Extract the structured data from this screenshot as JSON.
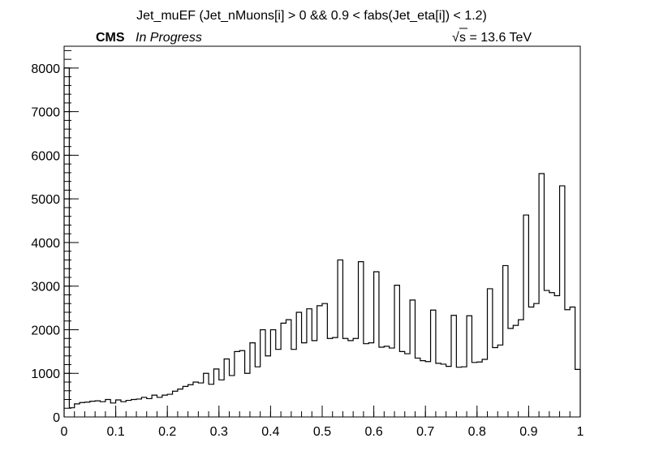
{
  "header": {
    "title": "Jet_muEF (Jet_nMuons[i] > 0  && 0.9 < fabs(Jet_eta[i]) < 1.2)",
    "experiment": "CMS",
    "status": "In Progress",
    "energy_label": "s = 13.6 TeV",
    "sqrt_symbol": "√"
  },
  "chart_data": {
    "type": "histogram",
    "title": "Jet_muEF (Jet_nMuons[i] > 0  && 0.9 < fabs(Jet_eta[i]) < 1.2)",
    "xlabel": "",
    "ylabel": "",
    "xlim": [
      0,
      1
    ],
    "ylim": [
      0,
      8500
    ],
    "grid": false,
    "x_ticks": [
      "0",
      "0.1",
      "0.2",
      "0.3",
      "0.4",
      "0.5",
      "0.6",
      "0.7",
      "0.8",
      "0.9",
      "1"
    ],
    "y_ticks": [
      "0",
      "1000",
      "2000",
      "3000",
      "4000",
      "5000",
      "6000",
      "7000",
      "8000"
    ],
    "bin_width": 0.01,
    "bin_edges_start": 0.0,
    "values": [
      8000,
      210,
      300,
      330,
      340,
      360,
      370,
      350,
      400,
      320,
      390,
      350,
      380,
      400,
      410,
      450,
      420,
      500,
      450,
      500,
      520,
      590,
      640,
      700,
      740,
      800,
      780,
      1000,
      750,
      1100,
      850,
      1330,
      950,
      1500,
      1520,
      1000,
      1700,
      1150,
      2000,
      1400,
      2000,
      1550,
      2150,
      2230,
      1550,
      2400,
      1700,
      2480,
      1750,
      2550,
      2600,
      1800,
      1820,
      3600,
      1800,
      1750,
      1800,
      3560,
      1680,
      1700,
      3330,
      1600,
      1620,
      1580,
      3020,
      1500,
      1450,
      2680,
      1350,
      1290,
      1270,
      2450,
      1230,
      1210,
      1160,
      2330,
      1140,
      1150,
      2320,
      1250,
      1260,
      1320,
      2940,
      1590,
      1650,
      3470,
      2030,
      2100,
      2230,
      4630,
      2520,
      2600,
      5580,
      2900,
      2850,
      2780,
      5300,
      2460,
      2520,
      1090
    ]
  }
}
